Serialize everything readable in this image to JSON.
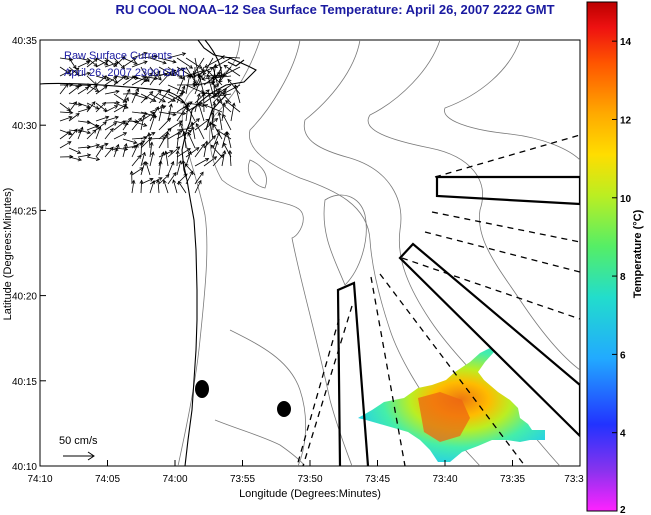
{
  "title": "RU COOL  NOAA–12  Sea Surface Temperature:  April 26, 2007 2222 GMT",
  "legend": {
    "line1": "Raw Surface Currents",
    "line2": "April 26, 2007 2300 GMT",
    "scale_label": "50 cm/s"
  },
  "axes": {
    "xlabel": "Longitude (Degrees:Minutes)",
    "ylabel": "Latitude (Degrees:Minutes)",
    "xticks": [
      "74:10",
      "74:05",
      "74:00",
      "73:55",
      "73:50",
      "73:45",
      "73:40",
      "73:35",
      "73:3"
    ],
    "yticks": [
      "40:35",
      "40:30",
      "40:25",
      "40:20",
      "40:15",
      "40:10"
    ]
  },
  "colorbar": {
    "label": "Temperature (°C)",
    "ticks": [
      "14",
      "12",
      "10",
      "8",
      "6",
      "4",
      "2"
    ],
    "range": [
      2,
      15
    ]
  },
  "colors": {
    "title": "#1a1aa0",
    "coast": "#000000",
    "bathymetry": "#7a7a7a"
  }
}
